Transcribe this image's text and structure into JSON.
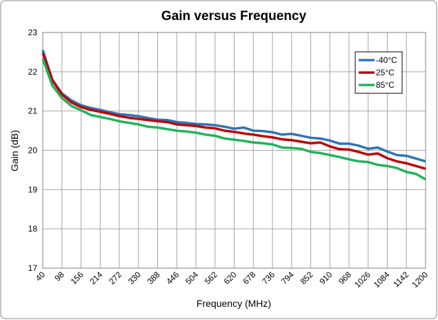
{
  "chart_data": {
    "type": "line",
    "title": "Gain versus Frequency",
    "x_label": "Frequency (MHz)",
    "y_label": "Gain (dB)",
    "x": [
      40,
      69,
      98,
      127,
      156,
      185,
      214,
      243,
      272,
      301,
      330,
      359,
      388,
      417,
      446,
      475,
      504,
      533,
      562,
      591,
      620,
      649,
      678,
      707,
      736,
      765,
      794,
      823,
      852,
      881,
      910,
      939,
      968,
      997,
      1026,
      1055,
      1084,
      1113,
      1142,
      1171,
      1200
    ],
    "series": [
      {
        "name": "-40°C",
        "color": "#2e75b6",
        "values": [
          22.55,
          21.8,
          21.45,
          21.27,
          21.15,
          21.08,
          21.03,
          20.97,
          20.92,
          20.9,
          20.87,
          20.82,
          20.78,
          20.77,
          20.72,
          20.7,
          20.67,
          20.66,
          20.64,
          20.6,
          20.55,
          20.58,
          20.5,
          20.49,
          20.46,
          20.4,
          20.42,
          20.37,
          20.32,
          20.3,
          20.25,
          20.17,
          20.17,
          20.12,
          20.04,
          20.07,
          19.97,
          19.88,
          19.86,
          19.79,
          19.72
        ]
      },
      {
        "name": "25°C",
        "color": "#c00000",
        "values": [
          22.48,
          21.78,
          21.42,
          21.22,
          21.1,
          21.03,
          20.98,
          20.93,
          20.87,
          20.83,
          20.8,
          20.77,
          20.74,
          20.72,
          20.66,
          20.64,
          20.62,
          20.58,
          20.56,
          20.5,
          20.47,
          20.43,
          20.4,
          20.36,
          20.33,
          20.28,
          20.26,
          20.22,
          20.18,
          20.2,
          20.1,
          20.03,
          20.02,
          19.96,
          19.89,
          19.92,
          19.8,
          19.72,
          19.67,
          19.6,
          19.53
        ]
      },
      {
        "name": "85°C",
        "color": "#21b35b",
        "values": [
          22.33,
          21.65,
          21.33,
          21.13,
          21.02,
          20.9,
          20.85,
          20.8,
          20.74,
          20.7,
          20.66,
          20.6,
          20.58,
          20.54,
          20.5,
          20.48,
          20.45,
          20.4,
          20.37,
          20.3,
          20.27,
          20.24,
          20.2,
          20.18,
          20.15,
          20.07,
          20.06,
          20.04,
          19.96,
          19.93,
          19.88,
          19.83,
          19.77,
          19.72,
          19.7,
          19.63,
          19.6,
          19.55,
          19.45,
          19.4,
          19.26
        ]
      }
    ],
    "xlim": [
      40,
      1200
    ],
    "xticks": [
      40,
      98,
      156,
      214,
      272,
      330,
      388,
      446,
      504,
      562,
      620,
      678,
      736,
      794,
      852,
      910,
      968,
      1026,
      1084,
      1142,
      1200
    ],
    "ylim": [
      17,
      23
    ],
    "yticks": [
      17,
      18,
      19,
      20,
      21,
      22,
      23
    ],
    "grid": true,
    "legend": "upper right"
  }
}
